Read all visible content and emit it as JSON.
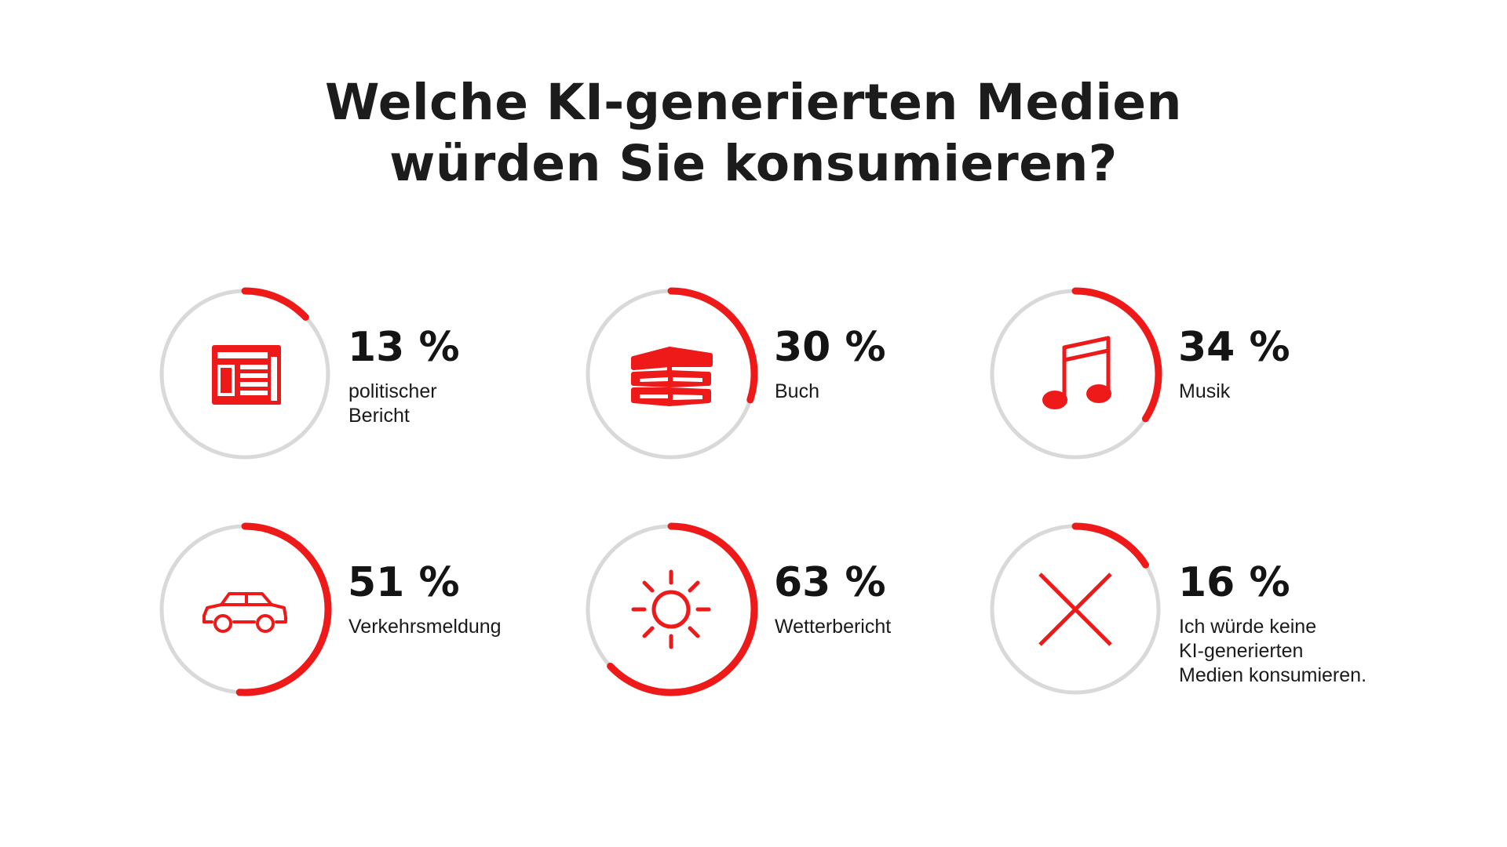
{
  "title_lines": [
    "Welche KI-generierten Medien",
    "würden Sie konsumieren?"
  ],
  "colors": {
    "accent": "#ee1a1a",
    "track": "#d9d9d9",
    "text": "#1a1a1a"
  },
  "chart_data": {
    "type": "radial-progress",
    "title": "Welche KI-generierten Medien würden Sie konsumieren?",
    "unit": "%",
    "items": [
      {
        "value": 13,
        "value_label": "13 %",
        "label_lines": [
          "politischer",
          "Bericht"
        ],
        "icon": "newspaper-icon"
      },
      {
        "value": 30,
        "value_label": "30 %",
        "label_lines": [
          "Buch"
        ],
        "icon": "books-icon"
      },
      {
        "value": 34,
        "value_label": "34 %",
        "label_lines": [
          "Musik"
        ],
        "icon": "music-note-icon"
      },
      {
        "value": 51,
        "value_label": "51 %",
        "label_lines": [
          "Verkehrsmeldung"
        ],
        "icon": "car-icon"
      },
      {
        "value": 63,
        "value_label": "63 %",
        "label_lines": [
          "Wetterbericht"
        ],
        "icon": "sun-icon"
      },
      {
        "value": 16,
        "value_label": "16 %",
        "label_lines": [
          "Ich würde keine",
          "KI-generierten",
          "Medien konsumieren."
        ],
        "icon": "cross-icon"
      }
    ]
  }
}
